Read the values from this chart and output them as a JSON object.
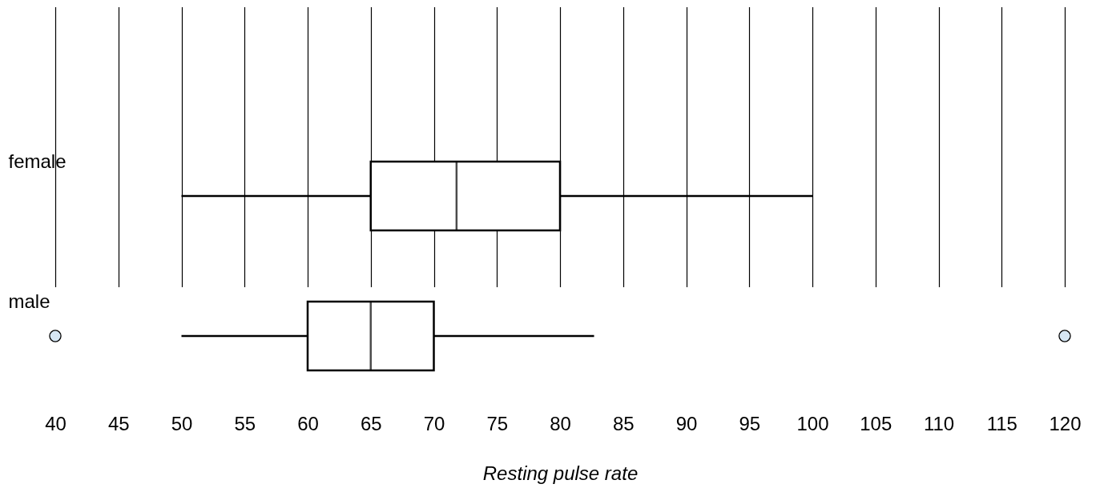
{
  "chart_data": {
    "type": "box",
    "orientation": "horizontal",
    "xlabel": "Resting pulse rate",
    "categories": [
      "female",
      "male"
    ],
    "boxes": [
      {
        "low": 50,
        "q1": 65,
        "median": 71.8,
        "q3": 80,
        "high": 100
      },
      {
        "low": 50,
        "q1": 60,
        "median": 65,
        "q3": 70,
        "high": 82.7,
        "outliers": [
          40,
          120
        ]
      }
    ],
    "xlim": [
      40,
      120
    ],
    "xticks": [
      40,
      45,
      50,
      55,
      60,
      65,
      70,
      75,
      80,
      85,
      90,
      95,
      100,
      105,
      110,
      115,
      120
    ],
    "grid": "x"
  }
}
